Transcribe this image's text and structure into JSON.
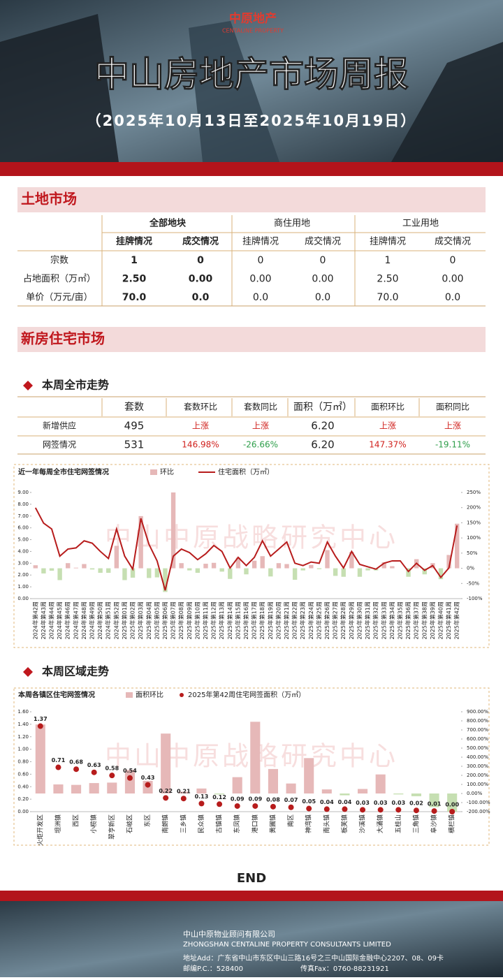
{
  "header": {
    "logo": "中原地产",
    "logo_en": "CENTALINE PROPERTY",
    "title": "中山房地产市场周报",
    "subtitle": "（2025年10月13日至2025年10月19日）"
  },
  "land": {
    "section": "土地市场",
    "groups": [
      "全部地块",
      "商住用地",
      "工业用地"
    ],
    "subheaders": [
      "挂牌情况",
      "成交情况",
      "挂牌情况",
      "成交情况",
      "挂牌情况",
      "成交情况"
    ],
    "rows": [
      [
        "宗数",
        "1",
        "0",
        "0",
        "0",
        "1",
        "0"
      ],
      [
        "占地面积（万㎡）",
        "2.50",
        "0.00",
        "0.00",
        "0.00",
        "2.50",
        "0.00"
      ],
      [
        "单价（万元/亩）",
        "70.0",
        "0.0",
        "0.0",
        "0.0",
        "70.0",
        "0.0"
      ]
    ]
  },
  "newhouse": {
    "section": "新房住宅市场",
    "city_title": "本周全市走势",
    "region_title": "本周区域走势",
    "table": {
      "headers": [
        "套数",
        "套数环比",
        "套数同比",
        "面积（万㎡）",
        "面积环比",
        "面积同比"
      ],
      "rows": [
        [
          "新增供应",
          "495",
          "上涨",
          "上涨",
          "6.20",
          "上涨",
          "上涨"
        ],
        [
          "网签情况",
          "531",
          "146.98%",
          "-26.66%",
          "6.20",
          "147.37%",
          "-19.11%"
        ]
      ]
    }
  },
  "chart_data": [
    {
      "type": "combo",
      "title": "近一年每周全市住宅网签情况",
      "watermark": "中山中原战略研究中心",
      "categories": [
        "2024年第42周",
        "2024年第43周",
        "2024年第44周",
        "2024年第45周",
        "2024年第46周",
        "2024年第47周",
        "2024年第48周",
        "2024年第49周",
        "2024年第50周",
        "2024年第51周",
        "2024年第52周",
        "2025年第01周",
        "2025年第02周",
        "2025年第03周",
        "2025年第04周",
        "2025年第05周",
        "2025年第06周",
        "2025年第07周",
        "2025年第08周",
        "2025年第09周",
        "2025年第10周",
        "2025年第11周",
        "2025年第12周",
        "2025年第13周",
        "2025年第14周",
        "2025年第15周",
        "2025年第16周",
        "2025年第17周",
        "2025年第18周",
        "2025年第19周",
        "2025年第20周",
        "2025年第21周",
        "2025年第22周",
        "2025年第23周",
        "2025年第24周",
        "2025年第25周",
        "2025年第26周",
        "2025年第27周",
        "2025年第28周",
        "2025年第29周",
        "2025年第30周",
        "2025年第31周",
        "2025年第32周",
        "2025年第33周",
        "2025年第34周",
        "2025年第35周",
        "2025年第36周",
        "2025年第37周",
        "2025年第38周",
        "2025年第39周",
        "2025年第40周",
        "2025年第41周",
        "2025年第42周"
      ],
      "series": [
        {
          "name": "环比",
          "type": "bar",
          "axis": "y2",
          "color": "#e6b8b8",
          "negative_color": "#c6dfb2",
          "values": [
            10,
            -17,
            -8,
            -39,
            17,
            2,
            14,
            -4,
            -15,
            -15,
            74,
            -39,
            -31,
            172,
            -32,
            -30,
            -78,
            250,
            17,
            -7,
            -15,
            15,
            18,
            -11,
            -35,
            35,
            -20,
            25,
            40,
            -27,
            17,
            14,
            -38,
            -7,
            11,
            -3,
            60,
            -25,
            -28,
            54,
            -28,
            -7,
            -7,
            20,
            7,
            0,
            -28,
            30,
            -20,
            17,
            -36,
            44,
            147
          ]
        },
        {
          "name": "住宅面积（万㎡）",
          "type": "line",
          "color": "#b71c1c",
          "values": [
            7.7,
            6.4,
            5.9,
            3.6,
            4.2,
            4.3,
            4.9,
            4.7,
            4.0,
            3.4,
            5.9,
            3.6,
            2.5,
            6.8,
            4.6,
            3.2,
            0.7,
            3.6,
            4.2,
            3.9,
            3.3,
            3.8,
            4.5,
            4.0,
            2.6,
            3.5,
            2.8,
            3.5,
            4.9,
            3.6,
            4.2,
            4.8,
            3.0,
            2.8,
            3.1,
            3.0,
            4.8,
            3.6,
            2.6,
            4.0,
            2.9,
            2.7,
            2.5,
            3.0,
            3.2,
            3.2,
            2.3,
            3.0,
            2.4,
            2.8,
            1.8,
            2.6,
            6.2
          ]
        }
      ],
      "ylim": [
        0,
        9
      ],
      "yticks": [
        {
          "value": 0,
          "label": "0.00"
        },
        {
          "value": 1,
          "label": "1.00"
        },
        {
          "value": 2,
          "label": "2.00"
        },
        {
          "value": 3,
          "label": "3.00"
        },
        {
          "value": 4,
          "label": "4.00"
        },
        {
          "value": 5,
          "label": "5.00"
        },
        {
          "value": 6,
          "label": "6.00"
        },
        {
          "value": 7,
          "label": "7.00"
        },
        {
          "value": 8,
          "label": "8.00"
        },
        {
          "value": 9,
          "label": "9.00"
        }
      ],
      "y2lim": [
        -100,
        250
      ],
      "y2ticks": [
        {
          "value": 250,
          "label": "250%"
        },
        {
          "value": 200,
          "label": "200%"
        },
        {
          "value": 150,
          "label": "150%"
        },
        {
          "value": 100,
          "label": "100%"
        },
        {
          "value": 50,
          "label": "50%"
        },
        {
          "value": 0,
          "label": "0%"
        },
        {
          "value": -50,
          "label": "-50%"
        },
        {
          "value": -100,
          "label": "-100%"
        }
      ]
    },
    {
      "type": "combo",
      "title": "本周各镇区住宅网签情况",
      "watermark": "中山中原战略研究中心",
      "categories": [
        "火炬开发区",
        "坦洲镇",
        "西区",
        "小榄镇",
        "翠亨新区",
        "石岐区",
        "东区",
        "南朗镇",
        "三乡镇",
        "民众镇",
        "古镇镇",
        "东凤镇",
        "港口镇",
        "黄圃镇",
        "南区",
        "神湾镇",
        "南头镇",
        "板芙镇",
        "沙溪镇",
        "大涌镇",
        "五桂山",
        "三角镇",
        "阜沙镇",
        "横栏镇"
      ],
      "series": [
        {
          "name": "面积环比",
          "type": "bar",
          "axis": "y2",
          "color": "#e6b8b8",
          "negative_color": "#c6dfb2",
          "values": [
            760,
            100,
            95,
            115,
            120,
            260,
            140,
            660,
            20,
            55,
            -10,
            180,
            790,
            270,
            110,
            390,
            45,
            -20,
            50,
            210,
            -10,
            -30,
            -150,
            -200
          ]
        },
        {
          "name": "2025年第42周住宅网签面积（万㎡）",
          "type": "scatter",
          "color": "#b71c1c",
          "values": [
            1.37,
            0.71,
            0.68,
            0.63,
            0.58,
            0.54,
            0.43,
            0.22,
            0.21,
            0.13,
            0.12,
            0.09,
            0.09,
            0.08,
            0.07,
            0.05,
            0.04,
            0.04,
            0.03,
            0.03,
            0.03,
            0.02,
            0.01,
            0
          ],
          "value_labels": [
            "1.37",
            "0.71",
            "0.68",
            "0.63",
            "0.58",
            "0.54",
            "0.43",
            "0.22",
            "0.21",
            "0.13",
            "0.12",
            "0.09",
            "0.09",
            "0.08",
            "0.07",
            "0.05",
            "0.04",
            "0.04",
            "0.03",
            "0.03",
            "0.03",
            "0.02",
            "0.01",
            "0.00"
          ]
        }
      ],
      "ylim": [
        0,
        1.6
      ],
      "yticks": [
        {
          "value": 0,
          "label": "0.00"
        },
        {
          "value": 0.2,
          "label": "0.20"
        },
        {
          "value": 0.4,
          "label": "0.40"
        },
        {
          "value": 0.6,
          "label": "0.60"
        },
        {
          "value": 0.8,
          "label": "0.80"
        },
        {
          "value": 1,
          "label": "1.00"
        },
        {
          "value": 1.2,
          "label": "1.20"
        },
        {
          "value": 1.4,
          "label": "1.40"
        },
        {
          "value": 1.6,
          "label": "1.60"
        }
      ],
      "y2lim": [
        -200,
        900
      ],
      "y2ticks": [
        {
          "value": 900,
          "label": "900.00%"
        },
        {
          "value": 800,
          "label": "800.00%"
        },
        {
          "value": 700,
          "label": "700.00%"
        },
        {
          "value": 600,
          "label": "600.00%"
        },
        {
          "value": 500,
          "label": "500.00%"
        },
        {
          "value": 400,
          "label": "400.00%"
        },
        {
          "value": 300,
          "label": "300.00%"
        },
        {
          "value": 200,
          "label": "200.00%"
        },
        {
          "value": 100,
          "label": "100.00%"
        },
        {
          "value": 0,
          "label": "0.00%"
        },
        {
          "value": -100,
          "label": "-100.00%"
        },
        {
          "value": -200,
          "label": "-200.00%"
        }
      ]
    }
  ],
  "end": "END",
  "footer": {
    "company": "中山中原物业顾问有限公司",
    "company_en": "ZHONGSHAN CENTALINE PROPERTY CONSULTANTS LIMITED",
    "address": "地址Add：广东省中山市东区中山三路16号之三中山国际金融中心2207、08、09卡",
    "postcode": "邮编P.C.：528400",
    "fax": "传真Fax：0760-88231921"
  }
}
